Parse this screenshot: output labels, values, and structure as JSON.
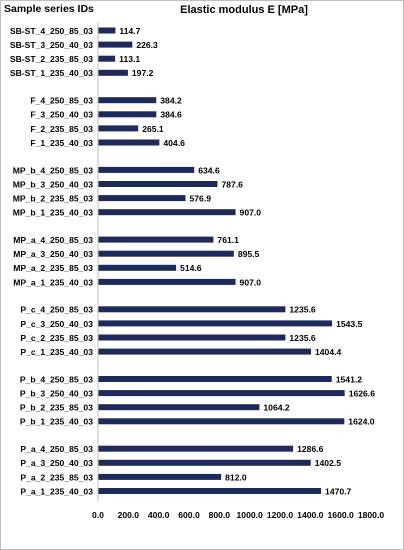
{
  "chart_data": {
    "type": "bar",
    "orientation": "horizontal",
    "title": "Elastic modulus E [MPa]",
    "category_axis_title": "Sample series IDs",
    "xlabel": "",
    "ylabel": "Sample series IDs",
    "xlim": [
      0,
      1800
    ],
    "xticks": [
      "0.0",
      "200.0",
      "400.0",
      "600.0",
      "800.0",
      "1000.0",
      "1200.0",
      "1400.0",
      "1600.0",
      "1800.0"
    ],
    "grid": false,
    "legend": "none",
    "bar_color": "#1f2a5c",
    "groups": [
      {
        "categories": [
          "SB-ST_4_250_85_03",
          "SB-ST_3_250_40_03",
          "SB-ST_2_235_85_03",
          "SB-ST_1_235_40_03"
        ],
        "values": [
          114.7,
          226.3,
          113.1,
          197.2
        ],
        "labels": [
          "114.7",
          "226.3",
          "113.1",
          "197.2"
        ]
      },
      {
        "categories": [
          "F_4_250_85_03",
          "F_3_250_40_03",
          "F_2_235_85_03",
          "F_1_235_40_03"
        ],
        "values": [
          384.2,
          384.6,
          265.1,
          404.6
        ],
        "labels": [
          "384.2",
          "384.6",
          "265.1",
          "404.6"
        ]
      },
      {
        "categories": [
          "MP_b_4_250_85_03",
          "MP_b_3_250_40_03",
          "MP_b_2_235_85_03",
          "MP_b_1_235_40_03"
        ],
        "values": [
          634.6,
          787.6,
          576.9,
          907.0
        ],
        "labels": [
          "634.6",
          "787.6",
          "576.9",
          "907.0"
        ]
      },
      {
        "categories": [
          "MP_a_4_250_85_03",
          "MP_a_3_250_40_03",
          "MP_a_2_235_85_03",
          "MP_a_1_235_40_03"
        ],
        "values": [
          761.1,
          895.5,
          514.6,
          907.0
        ],
        "labels": [
          "761.1",
          "895.5",
          "514.6",
          "907.0"
        ]
      },
      {
        "categories": [
          "P_c_4_250_85_03",
          "P_c_3_250_40_03",
          "P_c_2_235_85_03",
          "P_c_1_235_40_03"
        ],
        "values": [
          1235.6,
          1543.5,
          1235.6,
          1404.4
        ],
        "labels": [
          "1235.6",
          "1543.5",
          "1235.6",
          "1404.4"
        ]
      },
      {
        "categories": [
          "P_b_4_250_85_03",
          "P_b_3_250_40_03",
          "P_b_2_235_85_03",
          "P_b_1_235_40_03"
        ],
        "values": [
          1541.2,
          1626.6,
          1064.2,
          1624.0
        ],
        "labels": [
          "1541.2",
          "1626.6",
          "1064.2",
          "1624.0"
        ]
      },
      {
        "categories": [
          "P_a_4_250_85_03",
          "P_a_3_250_40_03",
          "P_a_2_235_85_03",
          "P_a_1_235_40_03"
        ],
        "values": [
          1286.6,
          1402.5,
          812.0,
          1470.7
        ],
        "labels": [
          "1286.6",
          "1402.5",
          "812.0",
          "1470.7"
        ]
      }
    ]
  }
}
